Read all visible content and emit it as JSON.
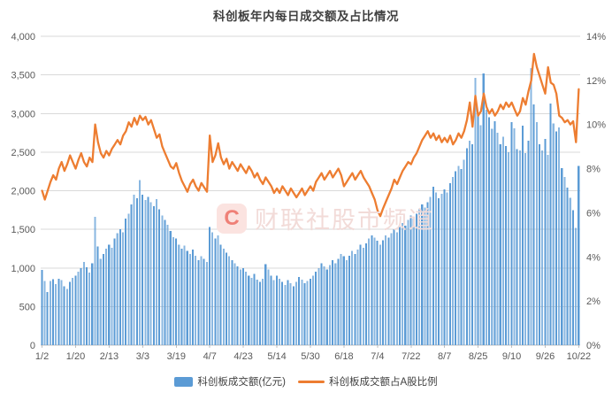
{
  "title": "科创板年内每日成交额及占比情况",
  "watermark": {
    "logo_letter": "C",
    "text": "财联社股市频道"
  },
  "legend": [
    {
      "label": "科创板成交额(亿元)",
      "type": "bar",
      "color": "#5B9BD5"
    },
    {
      "label": "科创板成交额占A股比例",
      "type": "line",
      "color": "#ED7D31"
    }
  ],
  "colors": {
    "bar": "#5B9BD5",
    "line": "#ED7D31",
    "grid": "#D9D9D9",
    "axis": "#BFBFBF",
    "axis_text": "#595959",
    "title_text": "#404040",
    "watermark_pink": "#F6E0DD"
  },
  "chart_data": {
    "type": "combo",
    "grid": true,
    "legend_position": "bottom",
    "x_tick_labels": [
      "1/2",
      "1/20",
      "2/13",
      "3/3",
      "3/19",
      "4/7",
      "4/23",
      "5/14",
      "5/30",
      "6/18",
      "7/4",
      "7/22",
      "8/7",
      "8/25",
      "9/10",
      "9/26",
      "10/22"
    ],
    "x_tick_indices": [
      0,
      12,
      24,
      36,
      48,
      60,
      72,
      84,
      96,
      108,
      120,
      132,
      144,
      156,
      168,
      180,
      192
    ],
    "y_left": {
      "min": 0,
      "max": 4000,
      "step": 500,
      "tick_labels": [
        "4,000",
        "3,500",
        "3,000",
        "2,500",
        "2,000",
        "1,500",
        "1,000",
        "500",
        "0"
      ]
    },
    "y_right": {
      "min": 0,
      "max": 14,
      "step": 2,
      "tick_labels": [
        "14%",
        "12%",
        "10%",
        "8%",
        "6%",
        "4%",
        "2%",
        "0%"
      ]
    },
    "series": [
      {
        "name": "科创板成交额(亿元)",
        "type": "bar",
        "axis": "left",
        "color": "#5B9BD5",
        "values": [
          975,
          830,
          690,
          830,
          855,
          790,
          860,
          845,
          760,
          730,
          820,
          870,
          900,
          950,
          1000,
          1080,
          1010,
          940,
          1060,
          1660,
          1280,
          1120,
          1180,
          1250,
          1300,
          1260,
          1380,
          1450,
          1500,
          1460,
          1640,
          1700,
          1820,
          1950,
          1900,
          2140,
          1950,
          1880,
          1920,
          1850,
          1800,
          1890,
          1760,
          1680,
          1620,
          1560,
          1480,
          1400,
          1380,
          1300,
          1250,
          1290,
          1220,
          1180,
          1240,
          1160,
          1100,
          1150,
          1120,
          1080,
          1530,
          1460,
          1380,
          1420,
          1300,
          1250,
          1200,
          1150,
          1100,
          1060,
          1020,
          980,
          1000,
          950,
          900,
          870,
          920,
          850,
          820,
          860,
          1050,
          980,
          900,
          840,
          900,
          860,
          820,
          780,
          840,
          800,
          760,
          820,
          880,
          850,
          800,
          830,
          860,
          900,
          950,
          1000,
          1060,
          1020,
          980,
          1040,
          1100,
          1060,
          1120,
          1180,
          1150,
          1100,
          1160,
          1220,
          1180,
          1240,
          1300,
          1260,
          1320,
          1380,
          1420,
          1390,
          1350,
          1300,
          1360,
          1420,
          1390,
          1450,
          1500,
          1460,
          1530,
          1580,
          1550,
          1620,
          1680,
          1640,
          1700,
          1760,
          1820,
          1780,
          1850,
          1920,
          2050,
          1980,
          1900,
          1960,
          2020,
          1980,
          2100,
          2180,
          2250,
          2320,
          2280,
          2400,
          2550,
          2650,
          2600,
          3460,
          2980,
          2850,
          3520,
          3050,
          2950,
          2800,
          2900,
          2750,
          2600,
          2700,
          2580,
          2500,
          2890,
          2810,
          2540,
          2520,
          2840,
          2490,
          2650,
          3590,
          3120,
          2890,
          2600,
          2520,
          2670,
          2465,
          3130,
          2870,
          2770,
          2820,
          2290,
          2180,
          2040,
          1910,
          1750,
          1520,
          2320
        ]
      },
      {
        "name": "科创板成交额占A股比例",
        "type": "line",
        "axis": "right",
        "color": "#ED7D31",
        "values": [
          7.0,
          6.6,
          7.0,
          7.4,
          7.7,
          7.5,
          8.0,
          8.3,
          7.9,
          8.2,
          8.6,
          8.3,
          8.0,
          8.4,
          8.7,
          8.3,
          8.1,
          8.5,
          8.3,
          10.0,
          9.2,
          8.7,
          8.5,
          8.8,
          8.6,
          8.9,
          9.1,
          9.3,
          9.1,
          9.5,
          9.7,
          10.1,
          9.9,
          10.3,
          10.0,
          10.4,
          10.2,
          10.35,
          10.0,
          10.2,
          9.8,
          9.4,
          9.55,
          9.0,
          8.7,
          8.4,
          8.1,
          8.0,
          8.25,
          7.8,
          7.45,
          7.2,
          6.95,
          7.3,
          7.5,
          7.2,
          7.0,
          7.35,
          7.15,
          6.95,
          9.5,
          8.3,
          8.6,
          9.15,
          8.5,
          8.2,
          8.45,
          8.0,
          8.3,
          8.1,
          7.9,
          8.2,
          8.0,
          7.8,
          8.1,
          7.9,
          7.6,
          7.8,
          7.5,
          7.3,
          7.6,
          7.4,
          7.2,
          6.9,
          7.1,
          6.9,
          7.2,
          7.0,
          6.8,
          7.1,
          6.9,
          6.7,
          6.9,
          7.1,
          6.8,
          7.0,
          7.2,
          7.0,
          7.4,
          7.6,
          7.8,
          7.5,
          7.7,
          7.9,
          7.6,
          7.8,
          8.0,
          7.7,
          7.2,
          7.4,
          7.6,
          7.8,
          7.5,
          7.7,
          7.9,
          7.6,
          7.4,
          7.2,
          6.9,
          6.6,
          6.1,
          5.85,
          6.2,
          6.5,
          6.8,
          7.1,
          7.5,
          7.3,
          7.6,
          7.9,
          8.1,
          8.3,
          8.2,
          8.5,
          8.7,
          9.0,
          9.3,
          9.5,
          9.7,
          9.4,
          9.6,
          9.3,
          9.5,
          9.2,
          9.4,
          9.2,
          9.5,
          9.1,
          9.3,
          9.6,
          9.4,
          9.7,
          10.2,
          11.0,
          9.9,
          11.3,
          10.4,
          10.6,
          11.4,
          10.8,
          10.5,
          10.7,
          10.4,
          10.6,
          10.9,
          10.7,
          11.0,
          10.8,
          11.0,
          10.7,
          10.4,
          10.6,
          11.2,
          10.9,
          11.5,
          12.0,
          13.2,
          12.6,
          12.2,
          11.8,
          11.4,
          12.6,
          11.9,
          11.8,
          11.4,
          10.4,
          10.3,
          10.1,
          10.2,
          10.0,
          10.15,
          9.2,
          11.6
        ]
      }
    ]
  }
}
